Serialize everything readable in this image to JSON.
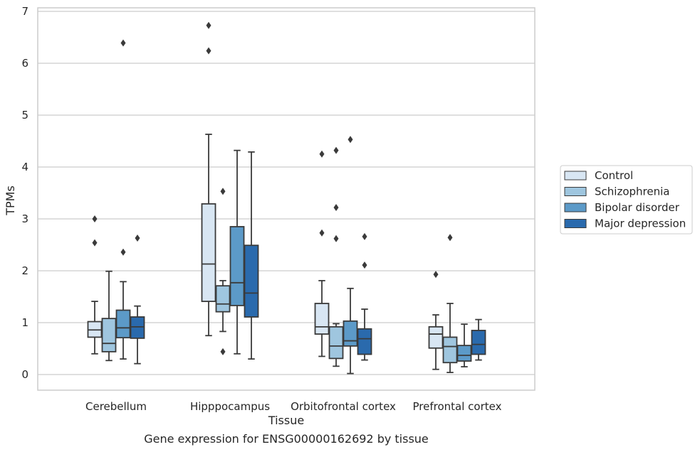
{
  "chart_data": {
    "type": "box",
    "caption": "Gene expression for ENSG00000162692 by tissue",
    "xlabel": "Tissue",
    "ylabel": "TPMs",
    "ylim": [
      -0.3,
      7.1
    ],
    "yticks": [
      0,
      1,
      2,
      3,
      4,
      5,
      6,
      7
    ],
    "grid": true,
    "legend_position": "right",
    "categories": [
      "Cerebellum",
      "Hipppocampus",
      "Orbitofrontal cortex",
      "Prefrontal cortex"
    ],
    "series": [
      {
        "name": "Control",
        "color": "#d8e6f3",
        "boxes": [
          {
            "whislo": 0.4,
            "q1": 0.72,
            "med": 0.86,
            "q3": 1.02,
            "whishi": 1.41,
            "fliers": [
              3.0,
              2.54
            ]
          },
          {
            "whislo": 0.75,
            "q1": 1.41,
            "med": 2.13,
            "q3": 3.29,
            "whishi": 4.63,
            "fliers": [
              6.73,
              6.24
            ]
          },
          {
            "whislo": 0.35,
            "q1": 0.78,
            "med": 0.92,
            "q3": 1.37,
            "whishi": 1.81,
            "fliers": [
              4.25,
              2.73
            ]
          },
          {
            "whislo": 0.1,
            "q1": 0.51,
            "med": 0.78,
            "q3": 0.92,
            "whishi": 1.15,
            "fliers": [
              1.93
            ]
          }
        ]
      },
      {
        "name": "Schizophrenia",
        "color": "#9fc6df",
        "boxes": [
          {
            "whislo": 0.27,
            "q1": 0.44,
            "med": 0.6,
            "q3": 1.08,
            "whishi": 1.99,
            "fliers": []
          },
          {
            "whislo": 0.83,
            "q1": 1.21,
            "med": 1.36,
            "q3": 1.71,
            "whishi": 1.81,
            "fliers": [
              3.53,
              0.44
            ]
          },
          {
            "whislo": 0.16,
            "q1": 0.31,
            "med": 0.55,
            "q3": 0.92,
            "whishi": 0.98,
            "fliers": [
              4.32,
              3.22,
              2.62
            ]
          },
          {
            "whislo": 0.04,
            "q1": 0.23,
            "med": 0.54,
            "q3": 0.72,
            "whishi": 1.37,
            "fliers": [
              2.64
            ]
          }
        ]
      },
      {
        "name": "Bipolar disorder",
        "color": "#5c9ac8",
        "boxes": [
          {
            "whislo": 0.3,
            "q1": 0.71,
            "med": 0.9,
            "q3": 1.24,
            "whishi": 1.79,
            "fliers": [
              6.39,
              2.36
            ]
          },
          {
            "whislo": 0.4,
            "q1": 1.33,
            "med": 1.77,
            "q3": 2.85,
            "whishi": 4.32,
            "fliers": []
          },
          {
            "whislo": 0.02,
            "q1": 0.55,
            "med": 0.65,
            "q3": 1.03,
            "whishi": 1.66,
            "fliers": [
              4.53
            ]
          },
          {
            "whislo": 0.15,
            "q1": 0.26,
            "med": 0.37,
            "q3": 0.56,
            "whishi": 0.97,
            "fliers": []
          }
        ]
      },
      {
        "name": "Major depression",
        "color": "#2a6aad",
        "boxes": [
          {
            "whislo": 0.21,
            "q1": 0.7,
            "med": 0.92,
            "q3": 1.11,
            "whishi": 1.32,
            "fliers": [
              2.63
            ]
          },
          {
            "whislo": 0.3,
            "q1": 1.11,
            "med": 1.57,
            "q3": 2.49,
            "whishi": 4.29,
            "fliers": []
          },
          {
            "whislo": 0.28,
            "q1": 0.39,
            "med": 0.69,
            "q3": 0.88,
            "whishi": 1.26,
            "fliers": [
              2.66,
              2.11
            ]
          },
          {
            "whislo": 0.28,
            "q1": 0.39,
            "med": 0.58,
            "q3": 0.85,
            "whishi": 1.06,
            "fliers": []
          }
        ]
      }
    ]
  }
}
